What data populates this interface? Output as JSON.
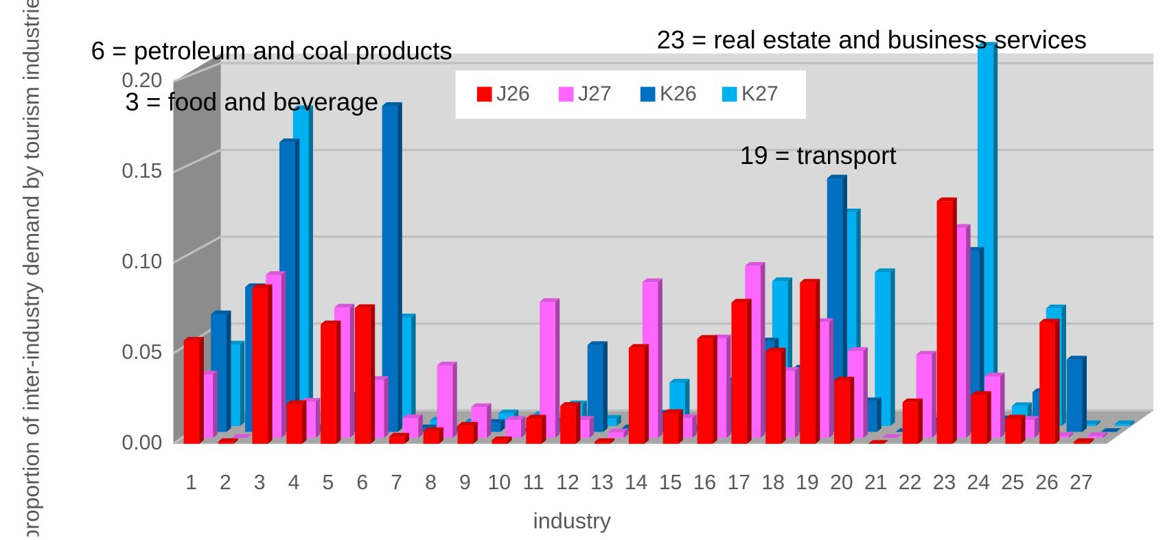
{
  "chart_data": {
    "type": "bar3d",
    "ylabel": "proportion of inter-industry demand by tourism industries",
    "xlabel": "industry",
    "annotations": [
      "6 = petroleum and coal products",
      "3 = food and beverage",
      "23 = real estate and business services",
      "19 = transport"
    ],
    "categories": [
      "1",
      "2",
      "3",
      "4",
      "5",
      "6",
      "7",
      "8",
      "9",
      "10",
      "11",
      "12",
      "13",
      "14",
      "15",
      "16",
      "17",
      "18",
      "19",
      "20",
      "21",
      "22",
      "23",
      "24",
      "25",
      "26",
      "27"
    ],
    "series": [
      {
        "name": "J26",
        "color": "#ff0000",
        "values": [
          0.057,
          0.001,
          0.086,
          0.022,
          0.066,
          0.075,
          0.004,
          0.007,
          0.01,
          0.002,
          0.014,
          0.021,
          0.001,
          0.053,
          0.017,
          0.058,
          0.078,
          0.051,
          0.089,
          0.035,
          0.0,
          0.023,
          0.134,
          0.027,
          0.014,
          0.067,
          0.001
        ]
      },
      {
        "name": "J27",
        "color": "#ff66ff",
        "values": [
          0.035,
          0.0,
          0.09,
          0.02,
          0.072,
          0.032,
          0.011,
          0.04,
          0.017,
          0.01,
          0.075,
          0.01,
          0.003,
          0.086,
          0.011,
          0.055,
          0.095,
          0.037,
          0.064,
          0.048,
          0.0,
          0.046,
          0.116,
          0.034,
          0.01,
          0.001,
          0.001
        ]
      },
      {
        "name": "K26",
        "color": "#0070c0",
        "values": [
          0.065,
          0.08,
          0.16,
          0.002,
          0.02,
          0.18,
          0.002,
          0.001,
          0.005,
          0.0,
          0.006,
          0.048,
          0.002,
          0.01,
          0.002,
          0.028,
          0.05,
          0.035,
          0.14,
          0.017,
          0.0,
          0.006,
          0.1,
          0.007,
          0.022,
          0.04,
          0.0
        ]
      },
      {
        "name": "K27",
        "color": "#00b0f0",
        "values": [
          0.045,
          0.0,
          0.175,
          0.0,
          0.0,
          0.06,
          0.003,
          0.002,
          0.007,
          0.006,
          0.012,
          0.004,
          0.0,
          0.024,
          0.0,
          0.0,
          0.08,
          0.0,
          0.118,
          0.085,
          0.0,
          0.0,
          0.21,
          0.011,
          0.065,
          0.001,
          0.001
        ]
      }
    ],
    "ylim": [
      0,
      0.2
    ],
    "yticks": [
      {
        "value": 0,
        "label": "0.00"
      },
      {
        "value": 0.05,
        "label": "0.05"
      },
      {
        "value": 0.1,
        "label": "0.10"
      },
      {
        "value": 0.15,
        "label": "0.15"
      },
      {
        "value": 0.2,
        "label": "0.20"
      }
    ],
    "grid": true
  }
}
